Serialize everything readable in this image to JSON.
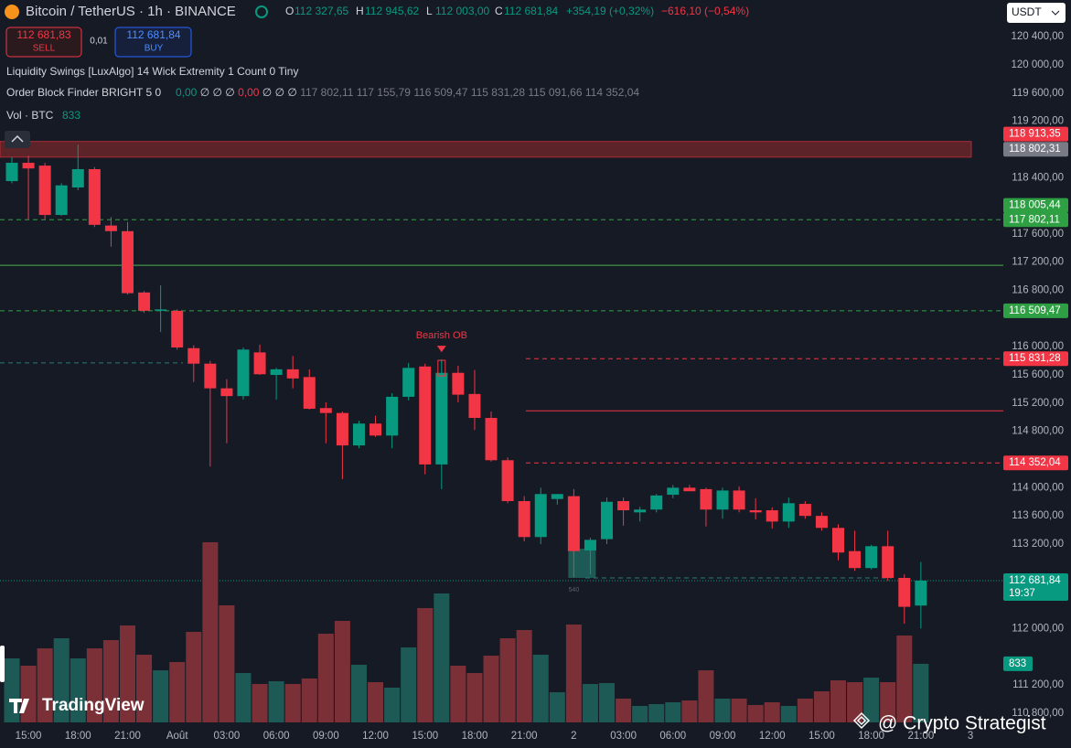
{
  "header": {
    "symbol": "Bitcoin / TetherUS · 1h · BINANCE",
    "ohlc": [
      {
        "key": "O",
        "value": "112 327,65"
      },
      {
        "key": "H",
        "value": "112 945,62"
      },
      {
        "key": "L",
        "value": "112 003,00"
      },
      {
        "key": "C",
        "value": "112 681,84"
      }
    ],
    "change": "+354,19 (+0,32%)",
    "change_alt": "−616,10 (−0,54%)",
    "sell_price": "112 681,83",
    "sell_label": "SELL",
    "quantity": "0,01",
    "buy_price": "112 681,84",
    "buy_label": "BUY",
    "currency": "USDT",
    "indicator_1": "Liquidity Swings [LuxAlgo] 14 Wick Extremity 1 Count 0 Tiny",
    "indicator_2": "Order Block Finder BRIGHT 5 0",
    "indicator_2_values": [
      {
        "text": "0,00",
        "color": "#089981"
      },
      {
        "text": "∅",
        "color": "#d1d4dc"
      },
      {
        "text": "∅",
        "color": "#d1d4dc"
      },
      {
        "text": "∅",
        "color": "#d1d4dc"
      },
      {
        "text": "0,00",
        "color": "#f23645"
      },
      {
        "text": "∅",
        "color": "#d1d4dc"
      },
      {
        "text": "∅",
        "color": "#d1d4dc"
      },
      {
        "text": "∅",
        "color": "#d1d4dc"
      },
      {
        "text": "117 802,11",
        "color": "#787b86"
      },
      {
        "text": "117 155,79",
        "color": "#787b86"
      },
      {
        "text": "116 509,47",
        "color": "#787b86"
      },
      {
        "text": "115 831,28",
        "color": "#787b86"
      },
      {
        "text": "115 091,66",
        "color": "#787b86"
      },
      {
        "text": "114 352,04",
        "color": "#787b86"
      }
    ],
    "volume_title": "Vol · BTC",
    "watermark": "TradingView",
    "credit": "@ Crypto Strategist"
  },
  "chart_data": {
    "type": "candlestick",
    "categories": [
      null,
      "15:00",
      null,
      null,
      "18:00",
      null,
      null,
      "21:00",
      null,
      null,
      "Août",
      null,
      null,
      "03:00",
      null,
      null,
      "06:00",
      null,
      null,
      "09:00",
      null,
      null,
      "12:00",
      null,
      null,
      "15:00",
      null,
      null,
      "18:00",
      null,
      null,
      "21:00",
      null,
      null,
      "2",
      null,
      null,
      "03:00",
      null,
      null,
      "06:00",
      null,
      null,
      "09:00",
      null,
      null,
      "12:00",
      null,
      null,
      "15:00",
      null,
      null,
      "18:00",
      null,
      null,
      "21:00",
      null,
      null,
      "3"
    ],
    "open": [
      118350,
      118610,
      118570,
      117870,
      118260,
      118520,
      117720,
      117640,
      116770,
      116510,
      116510,
      115980,
      115760,
      115410,
      115300,
      115920,
      115600,
      115680,
      115570,
      115130,
      115060,
      114600,
      114910,
      114740,
      115290,
      115720,
      114330,
      115630,
      115330,
      114990,
      114390,
      113810,
      113300,
      113840,
      113880,
      113110,
      113270,
      113810,
      113650,
      113690,
      113900,
      114000,
      113980,
      113690,
      113960,
      113680,
      113680,
      113520,
      113770,
      113600,
      113430,
      113100,
      112860,
      113170,
      112720,
      112327.65,
      null,
      null,
      null
    ],
    "high": [
      118690,
      118710,
      118610,
      118320,
      118870,
      118550,
      117840,
      117770,
      116790,
      116870,
      116530,
      116020,
      115800,
      115540,
      115990,
      116030,
      115700,
      115870,
      115680,
      115210,
      115080,
      114950,
      115020,
      115340,
      115770,
      115760,
      115820,
      115730,
      115670,
      115080,
      114430,
      113880,
      114000,
      113910,
      113980,
      113290,
      113860,
      113860,
      113730,
      113910,
      114040,
      114040,
      114000,
      114000,
      114020,
      113850,
      113720,
      113860,
      113810,
      113650,
      113480,
      113390,
      113190,
      113390,
      112770,
      112945.62,
      null,
      null,
      null
    ],
    "low": [
      118320,
      117810,
      117810,
      117860,
      118220,
      117700,
      117420,
      116740,
      116480,
      116210,
      115960,
      115500,
      114300,
      114630,
      115250,
      115600,
      115250,
      115410,
      115110,
      114630,
      114120,
      114560,
      114720,
      114560,
      115240,
      114190,
      113980,
      115210,
      114820,
      114370,
      113780,
      113240,
      113200,
      113760,
      112730,
      112770,
      113200,
      113460,
      113520,
      113650,
      113850,
      113950,
      113450,
      113560,
      113650,
      113550,
      113420,
      113430,
      113560,
      113390,
      112970,
      112820,
      112840,
      112680,
      112070,
      112003,
      null,
      null,
      null
    ],
    "close": [
      118610,
      118530,
      117870,
      118290,
      118520,
      117730,
      117640,
      116760,
      116510,
      116530,
      115990,
      115760,
      115410,
      115300,
      115960,
      115610,
      115680,
      115550,
      115120,
      115060,
      114600,
      114910,
      114740,
      115290,
      115700,
      114330,
      115630,
      115320,
      114990,
      114390,
      113810,
      113300,
      113910,
      113910,
      113100,
      113260,
      113800,
      113680,
      113690,
      113890,
      114000,
      113950,
      113690,
      113960,
      113690,
      113650,
      113520,
      113780,
      113600,
      113430,
      113080,
      112860,
      113170,
      112720,
      112310,
      112681.84,
      null,
      null,
      null
    ],
    "volume": [
      910,
      806,
      1053,
      1196,
      910,
      1053,
      1170,
      1378,
      962,
      741,
      858,
      1287,
      2561,
      1664,
      702,
      546,
      585,
      546,
      624,
      1261,
      1443,
      819,
      572,
      494,
      1066,
      1625,
      1833,
      806,
      702,
      949,
      1196,
      1313,
      962,
      429,
      1391,
      546,
      559,
      338,
      234,
      260,
      286,
      312,
      741,
      338,
      338,
      247,
      286,
      234,
      338,
      442,
      598,
      572,
      637,
      572,
      1235,
      833,
      null,
      null,
      null
    ],
    "colors": {
      "up": "#089981",
      "down": "#f23645",
      "volume_up": "#1d5a56",
      "volume_down": "#7b2f37"
    },
    "ylim": [
      110670,
      120920
    ],
    "yticks": [
      {
        "value": 120400,
        "label": "120 400,00"
      },
      {
        "value": 120000,
        "label": "120 000,00"
      },
      {
        "value": 119600,
        "label": "119 600,00"
      },
      {
        "value": 119200,
        "label": "119 200,00"
      },
      {
        "value": 118400,
        "label": "118 400,00"
      },
      {
        "value": 117600,
        "label": "117 600,00"
      },
      {
        "value": 117200,
        "label": "117 200,00"
      },
      {
        "value": 116800,
        "label": "116 800,00"
      },
      {
        "value": 116000,
        "label": "116 000,00"
      },
      {
        "value": 115600,
        "label": "115 600,00"
      },
      {
        "value": 115200,
        "label": "115 200,00"
      },
      {
        "value": 114800,
        "label": "114 800,00"
      },
      {
        "value": 114000,
        "label": "114 000,00"
      },
      {
        "value": 113600,
        "label": "113 600,00"
      },
      {
        "value": 113200,
        "label": "113 200,00"
      },
      {
        "value": 112000,
        "label": "112 000,00"
      },
      {
        "value": 111200,
        "label": "111 200,00"
      },
      {
        "value": 110800,
        "label": "110 800,00"
      }
    ],
    "grid": false,
    "levels": [
      {
        "value": 118913.35,
        "label": "118 913,35",
        "color": "#f23645",
        "line": "none"
      },
      {
        "value": 118802.31,
        "label": "118 802,31",
        "color": "#787b86",
        "line": "none"
      },
      {
        "value": 118005.44,
        "label": "118 005,44",
        "color": "#2ea043",
        "line": "none"
      },
      {
        "value": 117802.11,
        "label": "117 802,11",
        "color": "#2ea043",
        "line": "dashed"
      },
      {
        "value": 117155.79,
        "color": "#4caf50",
        "line": "solid"
      },
      {
        "value": 116509.47,
        "label": "116 509,47",
        "color": "#2ea043",
        "line": "dashed"
      },
      {
        "value": 115831.28,
        "label": "115 831,28",
        "color": "#f23645",
        "line": "dashed"
      },
      {
        "value": 115091.66,
        "color": "#f23645",
        "line": "solid"
      },
      {
        "value": 114352.04,
        "label": "114 352,04",
        "color": "#f23645",
        "line": "dashed"
      },
      {
        "value": 115770,
        "color": "#2a7a78",
        "line": "dashed"
      },
      {
        "value": 112720,
        "color": "#2a7a78",
        "line": "dashed"
      },
      {
        "value": 112681.84,
        "label": "112 681,84",
        "sublabel": "19:37",
        "color": "#089981",
        "line": "dotted"
      }
    ],
    "zone": {
      "top": 118913.35,
      "bottom": 118690,
      "color": "#5c2329"
    },
    "order_block": {
      "top": 113135,
      "bottom": 112720,
      "label": "540",
      "color": "#1d5a56"
    },
    "annotation": {
      "text": "Bearish OB",
      "color": "#f23645"
    }
  }
}
